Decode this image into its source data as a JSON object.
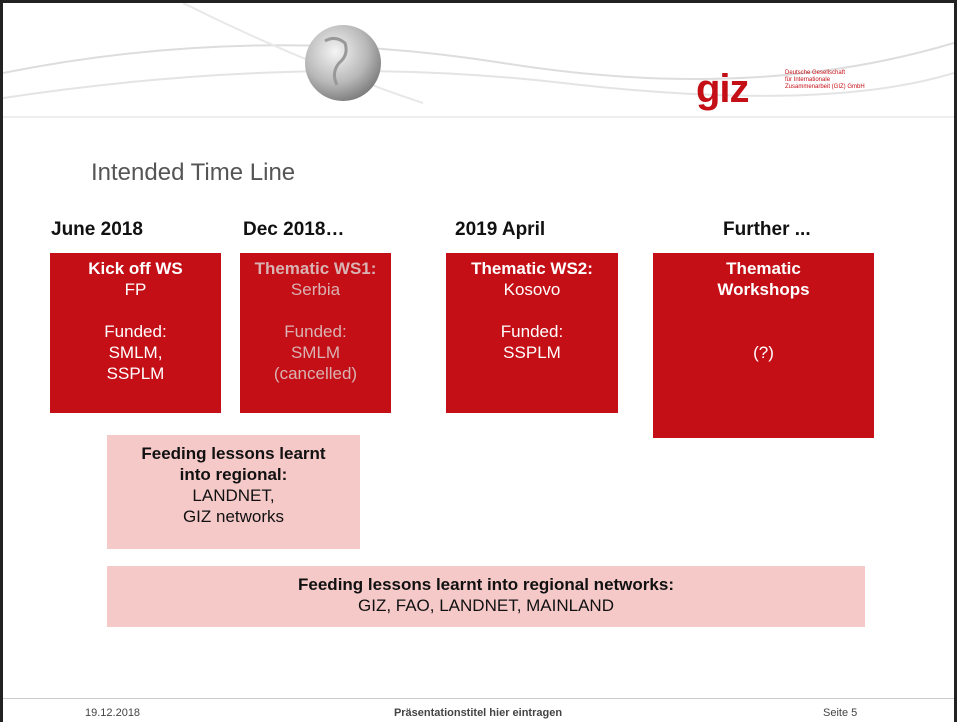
{
  "header": {
    "title": "Intended Time Line",
    "logo": "giz",
    "logo_text": [
      "Deutsche Gesellschaft",
      "für Internationale",
      "Zusammenarbeit (GIZ) GmbH"
    ]
  },
  "columns": [
    {
      "heading": "June 2018",
      "title_lines": [
        "Kick off WS"
      ],
      "groups": [
        [
          "FP"
        ],
        [
          "Funded:",
          "SMLM,",
          "SSPLM"
        ]
      ]
    },
    {
      "heading": "Dec 2018…",
      "title_lines": [
        "Thematic WS1:"
      ],
      "groups": [
        [
          "Serbia"
        ],
        [
          "Funded:",
          "SMLM",
          "(cancelled)"
        ]
      ]
    },
    {
      "heading": "2019 April",
      "title_lines": [
        "Thematic WS2:"
      ],
      "groups": [
        [
          "Kosovo"
        ],
        [
          "Funded:",
          "SSPLM"
        ]
      ]
    },
    {
      "heading": "Further ...",
      "title_lines": [
        "Thematic",
        "Workshops"
      ],
      "groups": [
        [
          "(?)"
        ]
      ]
    }
  ],
  "notes": [
    {
      "bold_lines": [
        "Feeding lessons learnt",
        "into regional:"
      ],
      "lines": [
        "LANDNET,",
        "GIZ networks"
      ]
    },
    {
      "bold_lines": [
        "Feeding lessons learnt into regional networks:"
      ],
      "lines": [
        "GIZ, FAO, LANDNET, MAINLAND"
      ]
    }
  ],
  "footer": {
    "date": "19.12.2018",
    "title": "Präsentationstitel hier eintragen",
    "page": "Seite 5"
  }
}
